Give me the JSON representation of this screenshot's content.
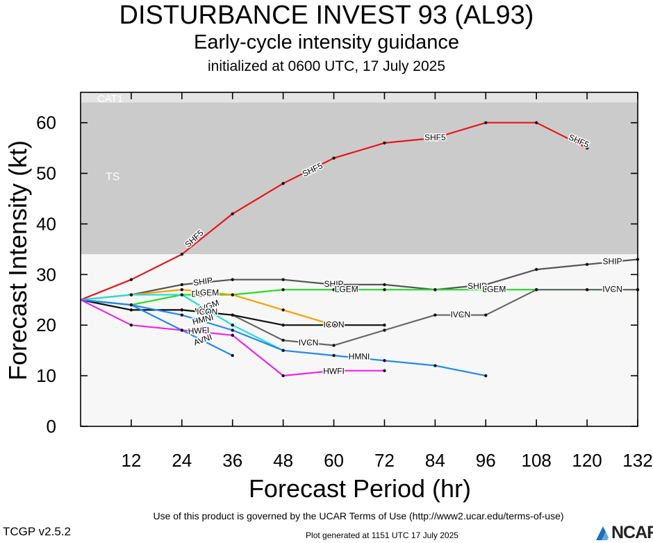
{
  "header": {
    "title": "DISTURBANCE INVEST 93 (AL93)",
    "subtitle": "Early-cycle intensity guidance",
    "init": "initialized at 0600 UTC, 17 July 2025"
  },
  "footer": {
    "terms": "Use of this product is governed by the UCAR Terms of Use (http://www2.ucar.edu/terms-of-use)",
    "version": "TCGP v2.5.2",
    "generated": "Plot generated at 1151 UTC   17 July 2025",
    "logo_text": "NCAR",
    "logo_icon": "ncar-logo-icon"
  },
  "chart_data": {
    "type": "line",
    "xlabel": "Forecast Period (hr)",
    "ylabel": "Forecast Intensity (kt)",
    "xlim": [
      0,
      132
    ],
    "ylim": [
      0,
      66
    ],
    "xticks": [
      12,
      24,
      36,
      48,
      60,
      72,
      84,
      96,
      108,
      120,
      132
    ],
    "yticks": [
      0,
      10,
      20,
      30,
      40,
      50,
      60
    ],
    "bands": [
      {
        "label": "TS",
        "from": 34,
        "to": 64,
        "color": "#cbcbcb"
      },
      {
        "label": "CAT1",
        "from": 64,
        "to": 66,
        "color": "#e4e4e4"
      },
      {
        "label": "",
        "from": 0,
        "to": 34,
        "color": "#f7f7f7"
      }
    ],
    "series": [
      {
        "name": "SHF5",
        "color": "#e8141b",
        "x": [
          0,
          12,
          24,
          36,
          48,
          60,
          72,
          84,
          96,
          108,
          120
        ],
        "y": [
          25,
          29,
          34,
          42,
          48,
          53,
          56,
          57,
          60,
          60,
          55
        ],
        "labels": [
          {
            "x": 27,
            "y": 37,
            "angle": -42
          },
          {
            "x": 55,
            "y": 50.6,
            "angle": -26
          },
          {
            "x": 84,
            "y": 57,
            "angle": 0
          },
          {
            "x": 118,
            "y": 56.3,
            "angle": 24
          }
        ]
      },
      {
        "name": "SHIP",
        "color": "#555555",
        "x": [
          0,
          12,
          24,
          36,
          48,
          60,
          72,
          84,
          96,
          108,
          120,
          132
        ],
        "y": [
          25,
          26,
          28,
          29,
          29,
          28,
          28,
          27,
          28,
          31,
          32,
          33
        ],
        "labels": [
          {
            "x": 29,
            "y": 28.5,
            "angle": -8
          },
          {
            "x": 60,
            "y": 28,
            "angle": 0
          },
          {
            "x": 94,
            "y": 27.6,
            "angle": 0
          },
          {
            "x": 126,
            "y": 32.5,
            "angle": 0
          }
        ]
      },
      {
        "name": "DSHP",
        "color": "#22dd22",
        "x": [
          0,
          12,
          24,
          36,
          48,
          60,
          72,
          84,
          96,
          108,
          120,
          132
        ],
        "y": [
          25,
          24,
          26,
          26,
          27,
          27,
          27,
          27,
          27,
          27,
          27,
          27
        ],
        "labels": [
          {
            "x": 29,
            "y": 26,
            "angle": 0
          },
          {
            "x": 63,
            "y": 27,
            "angle": 0
          },
          {
            "x": 98,
            "y": 27,
            "angle": 0
          }
        ]
      },
      {
        "name": "LGEM",
        "color": "#f5a000",
        "x": [
          0,
          12,
          24,
          36,
          48,
          60
        ],
        "y": [
          25,
          26,
          27,
          26,
          23,
          20
        ],
        "labels": [
          {
            "x": 30,
            "y": 26.3,
            "angle": 0
          },
          {
            "x": 63,
            "y": 27,
            "angle": 0
          },
          {
            "x": 98,
            "y": 27,
            "angle": 0
          }
        ]
      },
      {
        "name": "IVCN",
        "color": "#666666",
        "x": [
          0,
          12,
          24,
          36,
          48,
          60,
          72,
          84,
          96,
          108,
          120,
          132
        ],
        "y": [
          25,
          23,
          23,
          22,
          17,
          16,
          19,
          22,
          22,
          27,
          27,
          27
        ],
        "labels": [
          {
            "x": 54,
            "y": 16.4,
            "angle": 0
          },
          {
            "x": 90,
            "y": 22,
            "angle": 0
          },
          {
            "x": 126,
            "y": 27,
            "angle": 0
          }
        ]
      },
      {
        "name": "NVGM",
        "color": "#22dddd",
        "x": [
          0,
          12,
          24,
          36,
          48
        ],
        "y": [
          25,
          26,
          26,
          20,
          15
        ],
        "labels": [
          {
            "x": 30,
            "y": 23.5,
            "angle": -22
          }
        ]
      },
      {
        "name": "ICON",
        "color": "#111111",
        "x": [
          0,
          12,
          24,
          36,
          48,
          60,
          72
        ],
        "y": [
          25,
          23,
          23,
          22,
          20,
          20,
          20
        ],
        "labels": [
          {
            "x": 30,
            "y": 22.5,
            "angle": 0
          },
          {
            "x": 60,
            "y": 20,
            "angle": 0
          }
        ]
      },
      {
        "name": "HMNI",
        "color": "#2288ee",
        "x": [
          0,
          12,
          24,
          36,
          48,
          60,
          72,
          84,
          96
        ],
        "y": [
          25,
          24,
          22,
          19,
          15,
          14,
          13,
          12,
          10
        ],
        "labels": [
          {
            "x": 29,
            "y": 21,
            "angle": -14
          },
          {
            "x": 66,
            "y": 13.7,
            "angle": 0
          }
        ]
      },
      {
        "name": "AVNI",
        "color": "#2288ee",
        "x": [
          0,
          12,
          24,
          36
        ],
        "y": [
          25,
          24,
          19,
          14
        ],
        "labels": [
          {
            "x": 29,
            "y": 17,
            "angle": -20
          }
        ]
      },
      {
        "name": "HWFI",
        "color": "#ee22ee",
        "x": [
          0,
          12,
          24,
          36,
          48,
          60,
          72
        ],
        "y": [
          25,
          20,
          19,
          18,
          10,
          11,
          11
        ],
        "labels": [
          {
            "x": 28,
            "y": 18.8,
            "angle": -4
          },
          {
            "x": 60,
            "y": 10.8,
            "angle": 0
          }
        ]
      }
    ]
  }
}
